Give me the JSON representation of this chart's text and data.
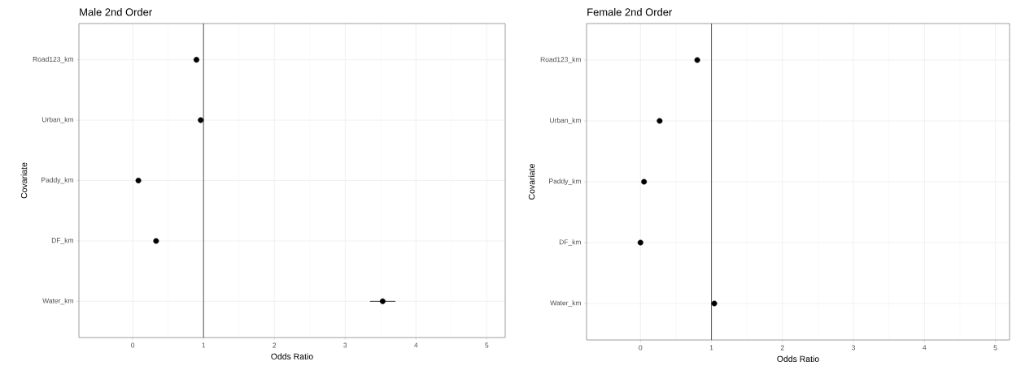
{
  "chart_data": [
    {
      "type": "scatter",
      "orientation": "horizontal",
      "title": "Male 2nd Order",
      "xlabel": "Odds Ratio",
      "ylabel": "Covariate",
      "categories": [
        "Road123_km",
        "Urban_km",
        "Paddy_km",
        "DF_km",
        "Water_km"
      ],
      "values": [
        0.9,
        0.96,
        0.08,
        0.33,
        3.53
      ],
      "errors": [
        null,
        null,
        null,
        null,
        [
          3.35,
          3.71
        ]
      ],
      "color": "#000000",
      "marker": "circle",
      "xlim": [
        -0.76,
        5.26
      ],
      "xticks": [
        0,
        1,
        2,
        3,
        4,
        5
      ],
      "grid": true,
      "ref_lines": [
        {
          "axis": "x",
          "value": 1,
          "color": "#555555"
        }
      ]
    },
    {
      "type": "scatter",
      "orientation": "horizontal",
      "title": "Female 2nd Order",
      "xlabel": "Odds Ratio",
      "ylabel": "Covariate",
      "categories": [
        "Road123_km",
        "Urban_km",
        "Paddy_km",
        "DF_km",
        "Water_km"
      ],
      "values": [
        0.8,
        0.27,
        0.05,
        0.0,
        1.04
      ],
      "color": "#000000",
      "marker": "circle",
      "xlim": [
        -0.76,
        5.2
      ],
      "xticks": [
        0,
        1,
        2,
        3,
        4,
        5
      ],
      "grid": true,
      "ref_lines": [
        {
          "axis": "x",
          "value": 1,
          "color": "#555555"
        }
      ]
    }
  ]
}
